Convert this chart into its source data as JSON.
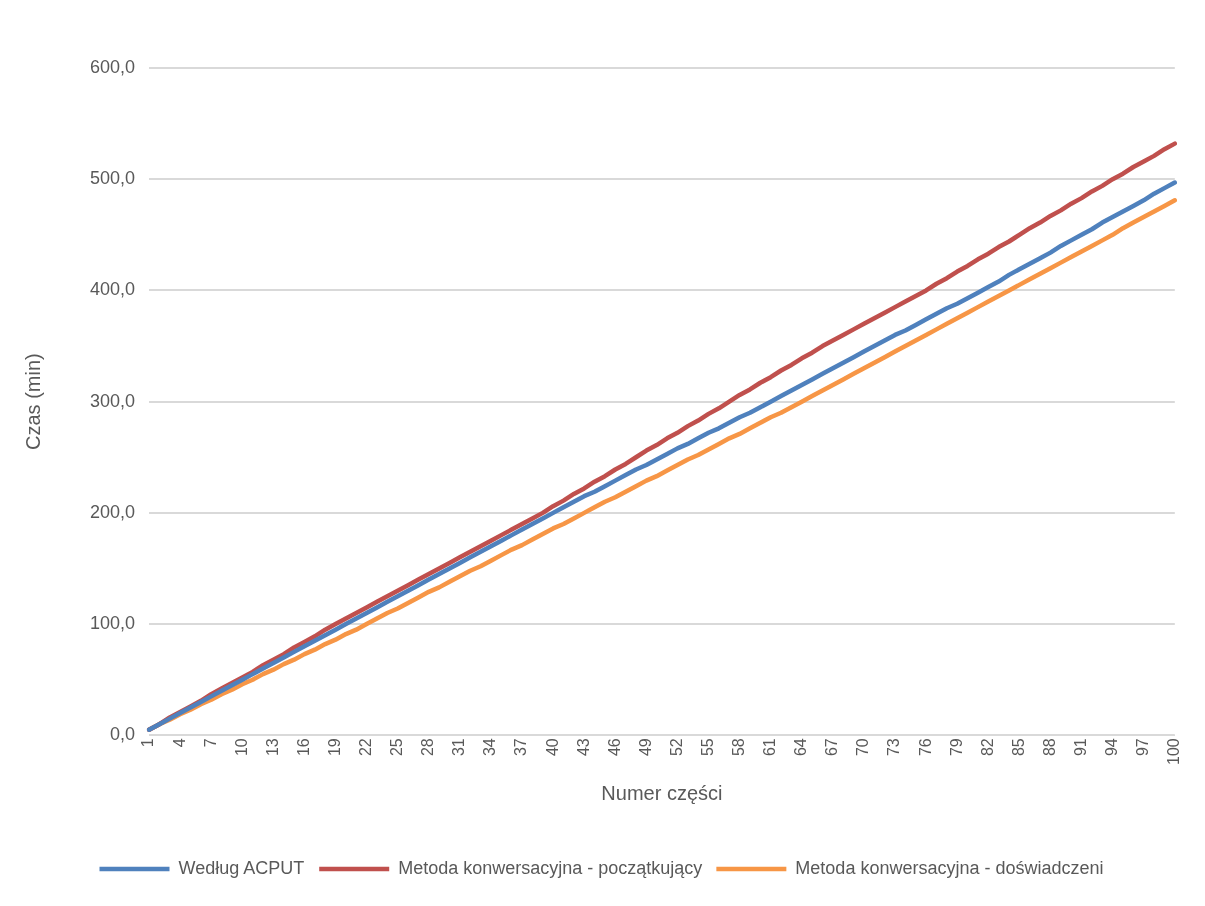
{
  "chart_data": {
    "type": "line",
    "xlabel": "Numer części",
    "ylabel": "Czas (min)",
    "categories": [
      "1",
      null,
      null,
      "4",
      null,
      null,
      "7",
      null,
      null,
      "10",
      null,
      null,
      "13",
      null,
      null,
      "16",
      null,
      null,
      "19",
      null,
      null,
      "22",
      null,
      null,
      "25",
      null,
      null,
      "28",
      null,
      null,
      "31",
      null,
      null,
      "34",
      null,
      null,
      "37",
      null,
      null,
      "40",
      null,
      null,
      "43",
      null,
      null,
      "46",
      null,
      null,
      "49",
      null,
      null,
      "52",
      null,
      null,
      "55",
      null,
      null,
      "58",
      null,
      null,
      "61",
      null,
      null,
      "64",
      null,
      null,
      "67",
      null,
      null,
      "70",
      null,
      null,
      "73",
      null,
      null,
      "76",
      null,
      null,
      "79",
      null,
      null,
      "82",
      null,
      null,
      "85",
      null,
      null,
      "88",
      null,
      null,
      "91",
      null,
      null,
      "94",
      null,
      null,
      "97",
      null,
      null,
      "100"
    ],
    "series": [
      {
        "name": "Według ACPUT",
        "color": "#4f81bd",
        "values": [
          5,
          10,
          15,
          20,
          25,
          30,
          35,
          40,
          45,
          50,
          55,
          60,
          65,
          70,
          75,
          80,
          85,
          90,
          95,
          100,
          105,
          110,
          115,
          120,
          125,
          130,
          135,
          140,
          145,
          150,
          155,
          160,
          165,
          170,
          175,
          180,
          185,
          190,
          195,
          200,
          205,
          210,
          215,
          219,
          224,
          229,
          234,
          239,
          243,
          248,
          253,
          258,
          262,
          267,
          272,
          276,
          281,
          286,
          290,
          295,
          300,
          305,
          310,
          315,
          320,
          325,
          330,
          335,
          340,
          345,
          350,
          355,
          360,
          364,
          369,
          374,
          379,
          384,
          388,
          393,
          398,
          403,
          408,
          414,
          419,
          424,
          429,
          434,
          440,
          445,
          450,
          455,
          461,
          466,
          471,
          476,
          481,
          487,
          492,
          497
        ]
      },
      {
        "name": "Metoda konwersacyjna - początkujący",
        "color": "#c0504d",
        "values": [
          5,
          10,
          16,
          21,
          26,
          31,
          37,
          42,
          47,
          52,
          57,
          63,
          68,
          73,
          79,
          84,
          89,
          95,
          100,
          105,
          110,
          115,
          120,
          125,
          130,
          135,
          140,
          145,
          150,
          155,
          160,
          165,
          170,
          175,
          180,
          185,
          190,
          195,
          200,
          206,
          211,
          217,
          222,
          228,
          233,
          239,
          244,
          250,
          256,
          261,
          267,
          272,
          278,
          283,
          289,
          294,
          300,
          306,
          311,
          317,
          322,
          328,
          333,
          339,
          344,
          350,
          355,
          360,
          365,
          370,
          375,
          380,
          385,
          390,
          395,
          400,
          406,
          411,
          417,
          422,
          428,
          433,
          439,
          444,
          450,
          456,
          461,
          467,
          472,
          478,
          483,
          489,
          494,
          500,
          505,
          511,
          516,
          521,
          527,
          532
        ]
      },
      {
        "name": "Metoda konwersacyjna - doświadczeni",
        "color": "#f79646",
        "values": [
          5,
          10,
          14,
          19,
          23,
          28,
          32,
          37,
          41,
          46,
          50,
          55,
          59,
          64,
          68,
          73,
          77,
          82,
          86,
          91,
          95,
          100,
          105,
          110,
          114,
          119,
          124,
          129,
          133,
          138,
          143,
          148,
          152,
          157,
          162,
          167,
          171,
          176,
          181,
          186,
          190,
          195,
          200,
          205,
          210,
          214,
          219,
          224,
          229,
          233,
          238,
          243,
          248,
          252,
          257,
          262,
          267,
          271,
          276,
          281,
          286,
          290,
          295,
          300,
          305,
          310,
          315,
          320,
          325,
          330,
          335,
          340,
          345,
          350,
          355,
          360,
          365,
          370,
          375,
          380,
          385,
          390,
          395,
          400,
          405,
          410,
          415,
          420,
          425,
          430,
          435,
          440,
          445,
          450,
          456,
          461,
          466,
          471,
          476,
          481
        ]
      }
    ],
    "ylim": [
      0,
      600
    ],
    "yticks": [
      {
        "value": 0,
        "label": "0,0"
      },
      {
        "value": 100,
        "label": "100,0"
      },
      {
        "value": 200,
        "label": "200,0"
      },
      {
        "value": 300,
        "label": "300,0"
      },
      {
        "value": 400,
        "label": "400,0"
      },
      {
        "value": 500,
        "label": "500,0"
      },
      {
        "value": 600,
        "label": "600,0"
      }
    ],
    "grid": "y",
    "legend": "bottom",
    "marker": "none",
    "line_style": "solid"
  }
}
